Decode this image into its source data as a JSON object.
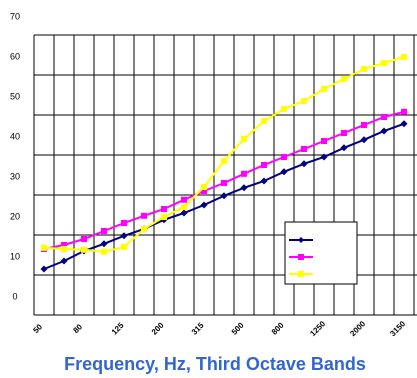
{
  "chart_data": {
    "type": "line",
    "x_label": "Frequency, Hz, Third Octave Bands",
    "categories": [
      50,
      null,
      80,
      null,
      125,
      null,
      200,
      null,
      315,
      null,
      500,
      null,
      800,
      null,
      1250,
      null,
      2000,
      null,
      3150
    ],
    "series": [
      {
        "color": "#000080",
        "marker": "diamond",
        "values": [
          11.5,
          13.5,
          16,
          17.8,
          19.8,
          21.5,
          23.8,
          25.5,
          27.5,
          29.8,
          31.8,
          33.5,
          35.8,
          37.8,
          39.5,
          41.8,
          43.8,
          46,
          47.8
        ]
      },
      {
        "color": "#ff00ff",
        "marker": "square",
        "values": [
          16.5,
          17.5,
          19,
          21,
          23,
          24.8,
          26.5,
          28.8,
          31,
          33,
          35.3,
          37.5,
          39.5,
          41.5,
          43.5,
          45.5,
          47.5,
          49.5,
          50.8
        ]
      },
      {
        "color": "#ffff00",
        "marker": "square",
        "values": [
          16.8,
          16.5,
          16.3,
          15.8,
          17,
          21.5,
          24.5,
          27,
          32,
          38.5,
          44,
          48.5,
          51.5,
          53.5,
          56.5,
          59,
          61.5,
          63,
          64.5
        ]
      }
    ],
    "ylim": [
      0,
      70
    ],
    "yticks": [
      0,
      10,
      20,
      30,
      40,
      50,
      60,
      70
    ],
    "grid": true
  }
}
